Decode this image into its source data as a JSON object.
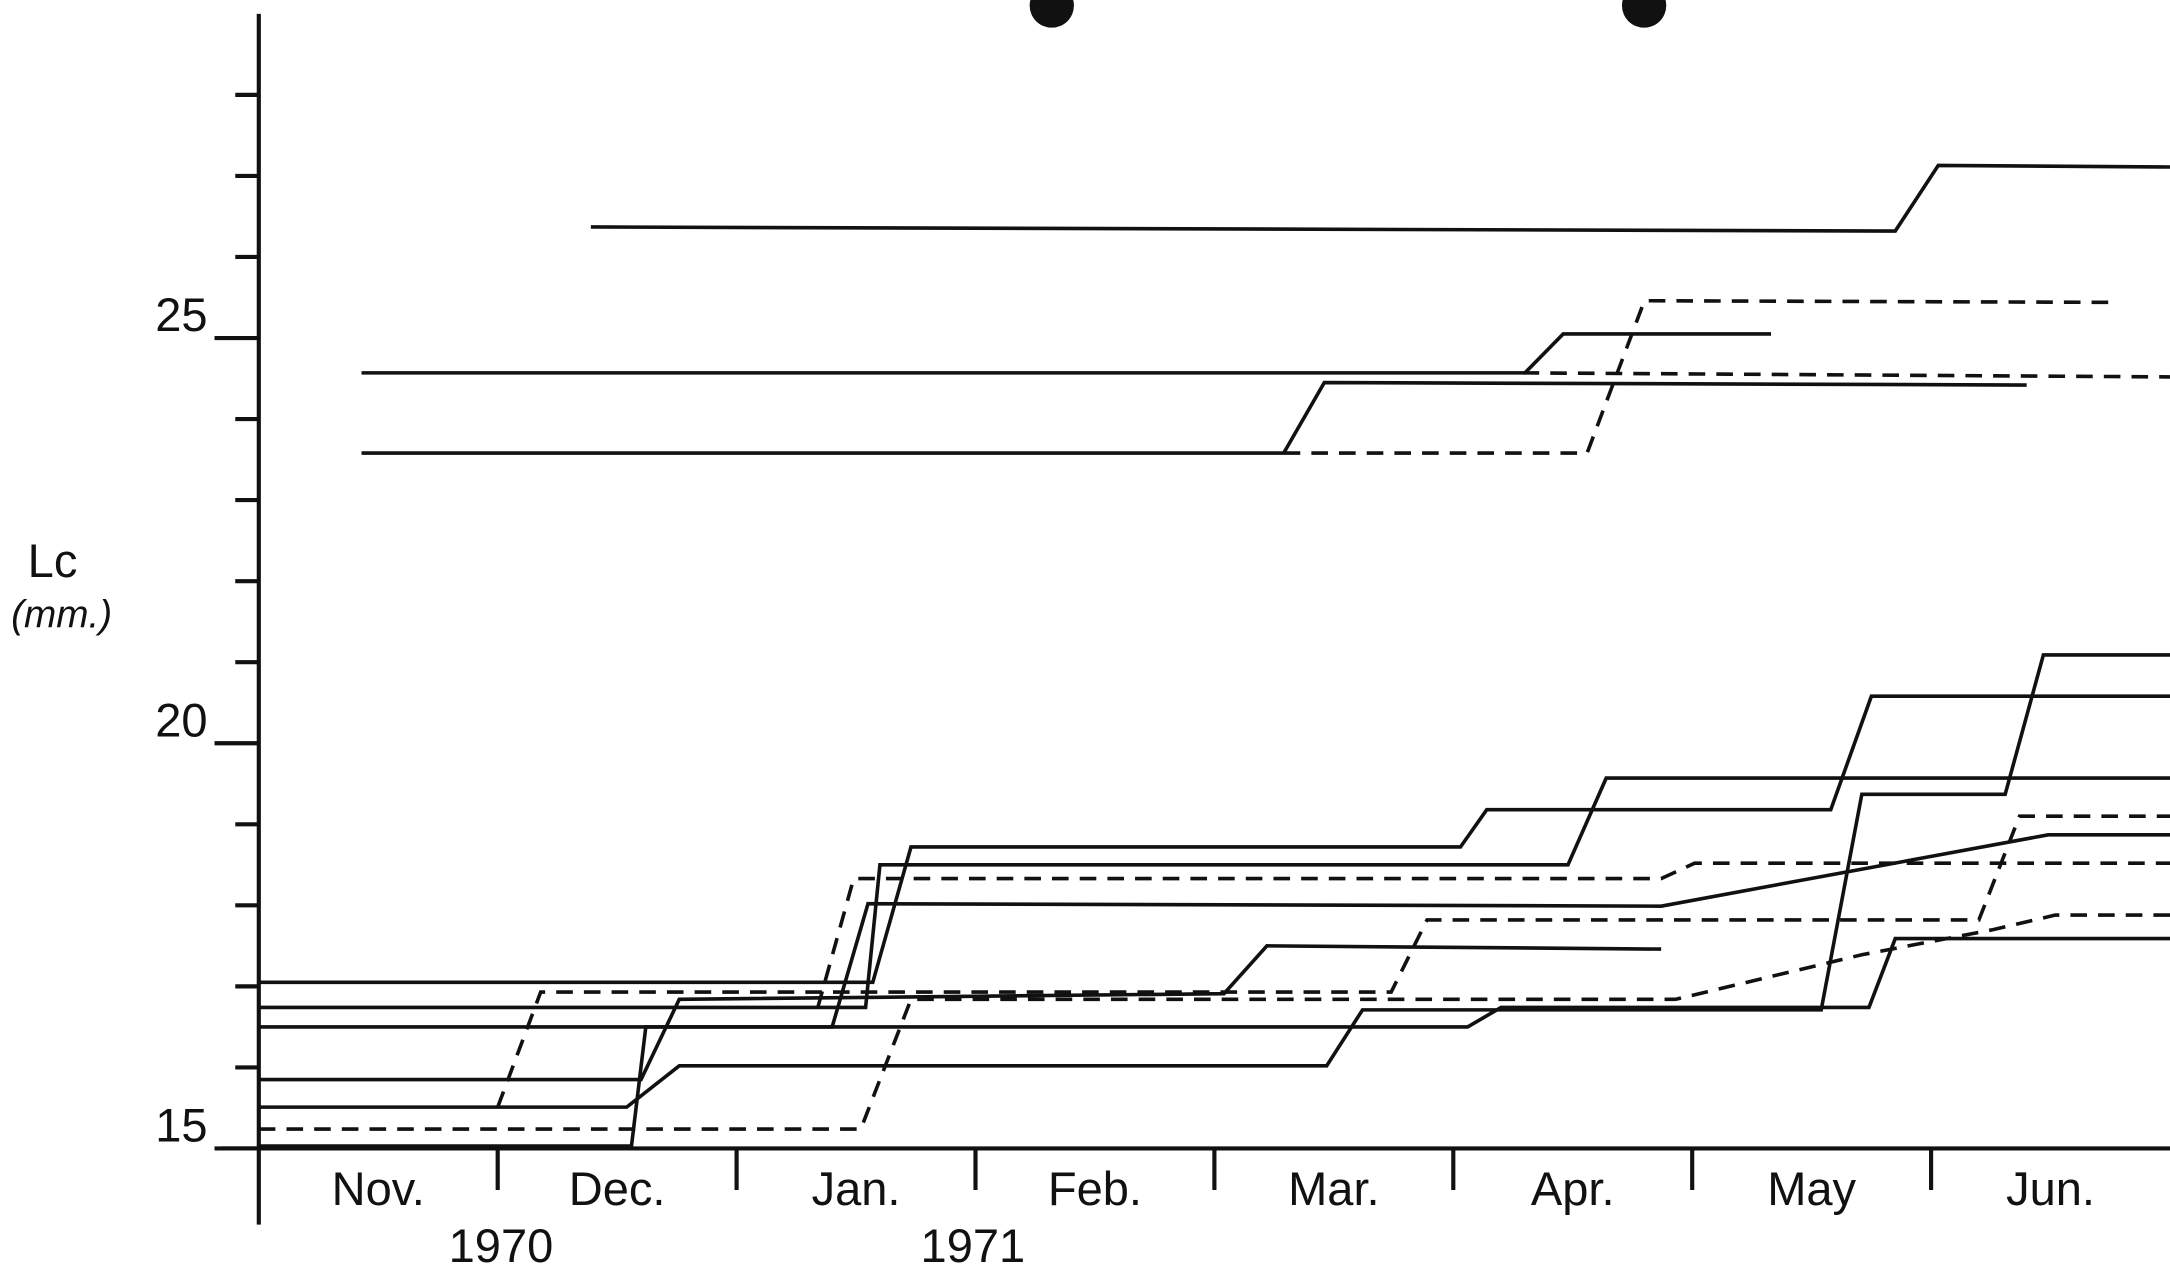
{
  "chart_data": {
    "type": "line",
    "y_label": "Lc",
    "y_unit": "(mm.)",
    "categories": [
      "Nov.",
      "Dec.",
      "Jan.",
      "Feb.",
      "Mar.",
      "Apr.",
      "May",
      "Jun."
    ],
    "annotations": [
      "1970",
      "1971"
    ],
    "xlim": [
      0,
      8
    ],
    "xticks": [
      1,
      2,
      3,
      4,
      5,
      6,
      7
    ],
    "ylim": [
      15,
      29
    ],
    "yticks": [
      15,
      20,
      25
    ],
    "yminor_ticks": [
      16,
      17,
      18,
      19,
      21,
      22,
      23,
      24,
      26,
      27,
      28
    ],
    "color": "#111111",
    "series": [
      {
        "style": "solid",
        "x": [
          1.39,
          6.85,
          7.03,
          8.0
        ],
        "values": [
          26.37,
          26.32,
          27.13,
          27.11
        ]
      },
      {
        "style": "solid",
        "x": [
          0.43,
          5.3,
          5.46,
          6.33
        ],
        "values": [
          24.57,
          24.57,
          25.05,
          25.05
        ]
      },
      {
        "style": "solid",
        "x": [
          0.43,
          4.29,
          4.46,
          7.4
        ],
        "values": [
          23.58,
          23.58,
          24.45,
          24.42
        ]
      },
      {
        "style": "dashed",
        "x": [
          4.29,
          5.56,
          5.8,
          7.75
        ],
        "values": [
          23.58,
          23.58,
          25.46,
          25.44
        ]
      },
      {
        "style": "dashed",
        "x": [
          5.29,
          8.0
        ],
        "values": [
          24.57,
          24.52
        ]
      },
      {
        "style": "solid",
        "x": [
          0,
          2.57,
          2.73,
          5.03,
          5.14,
          6.58,
          6.75,
          8.0
        ],
        "values": [
          17.05,
          17.05,
          18.72,
          18.72,
          19.18,
          19.18,
          20.58,
          20.58
        ]
      },
      {
        "style": "solid",
        "x": [
          0,
          2.54,
          2.6,
          5.48,
          5.64,
          8.0
        ],
        "values": [
          16.74,
          16.74,
          18.5,
          18.5,
          19.57,
          19.57
        ]
      },
      {
        "style": "solid",
        "x": [
          0,
          2.4,
          2.55,
          5.87,
          7.49,
          8.0
        ],
        "values": [
          16.5,
          16.5,
          18.02,
          17.99,
          18.87,
          18.87
        ]
      },
      {
        "style": "solid",
        "x": [
          0,
          1.6,
          1.76,
          4.04,
          4.22,
          5.87
        ],
        "values": [
          15.85,
          15.85,
          16.84,
          16.91,
          17.5,
          17.46
        ]
      },
      {
        "style": "solid",
        "x": [
          0,
          1.54,
          1.76,
          4.47,
          4.62,
          6.54,
          6.71,
          7.31,
          7.47,
          8.0
        ],
        "values": [
          15.51,
          15.51,
          16.02,
          16.02,
          16.71,
          16.71,
          19.37,
          19.37,
          21.09,
          21.09
        ]
      },
      {
        "style": "solid",
        "x": [
          0,
          1.56,
          1.62,
          5.06,
          5.2,
          6.74,
          6.85,
          8.0
        ],
        "values": [
          15.03,
          15.03,
          16.5,
          16.5,
          16.74,
          16.74,
          17.59,
          17.59
        ]
      },
      {
        "style": "dashed",
        "x": [
          0,
          2.52,
          2.73,
          5.93,
          6.71,
          7.26,
          7.52,
          8.0
        ],
        "values": [
          15.24,
          15.24,
          16.84,
          16.84,
          17.39,
          17.7,
          17.88,
          17.88
        ]
      },
      {
        "style": "dashed",
        "x": [
          1.0,
          1.18,
          4.74,
          4.89,
          7.2,
          7.37,
          8.0
        ],
        "values": [
          15.51,
          16.93,
          16.93,
          17.82,
          17.82,
          19.1,
          19.1
        ]
      },
      {
        "style": "dashed",
        "x": [
          2.34,
          2.49,
          5.87,
          6.01,
          8.0
        ],
        "values": [
          16.74,
          18.33,
          18.33,
          18.52,
          18.52
        ]
      }
    ]
  }
}
